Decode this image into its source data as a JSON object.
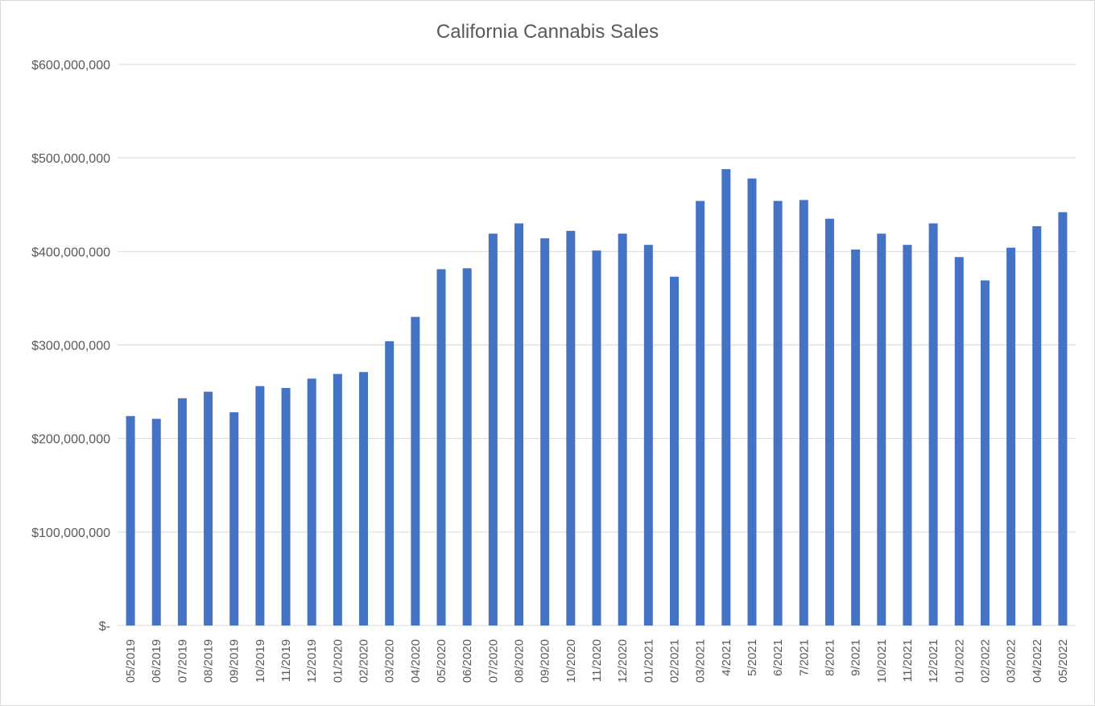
{
  "chart_data": {
    "type": "bar",
    "title": "California Cannabis Sales",
    "xlabel": "",
    "ylabel": "",
    "ylim": [
      0,
      600000000
    ],
    "yticks": [
      0,
      100000000,
      200000000,
      300000000,
      400000000,
      500000000,
      600000000
    ],
    "ytick_labels": [
      "$-",
      "$100,000,000",
      "$200,000,000",
      "$300,000,000",
      "$400,000,000",
      "$500,000,000",
      "$600,000,000"
    ],
    "grid": "horizontal",
    "legend": "none",
    "bar_color": "#4472C4",
    "grid_color": "#d9d9d9",
    "categories": [
      "05/2019",
      "06/2019",
      "07/2019",
      "08/2019",
      "09/2019",
      "10/2019",
      "11/2019",
      "12/2019",
      "01/2020",
      "02/2020",
      "03/2020",
      "04/2020",
      "05/2020",
      "06/2020",
      "07/2020",
      "08/2020",
      "09/2020",
      "10/2020",
      "11/2020",
      "12/2020",
      "01/2021",
      "02/2021",
      "03/2021",
      "4/2021",
      "5/2021",
      "6/2021",
      "7/2021",
      "8/2021",
      "9/2021",
      "10/2021",
      "11/2021",
      "12/2021",
      "01/2022",
      "02/2022",
      "03/2022",
      "04/2022",
      "05/2022"
    ],
    "values": [
      224000000,
      221000000,
      243000000,
      250000000,
      228000000,
      256000000,
      254000000,
      264000000,
      269000000,
      271000000,
      304000000,
      330000000,
      381000000,
      382000000,
      419000000,
      430000000,
      414000000,
      422000000,
      401000000,
      419000000,
      407000000,
      373000000,
      454000000,
      488000000,
      478000000,
      454000000,
      455000000,
      435000000,
      402000000,
      419000000,
      407000000,
      430000000,
      394000000,
      369000000,
      404000000,
      427000000,
      442000000
    ]
  }
}
